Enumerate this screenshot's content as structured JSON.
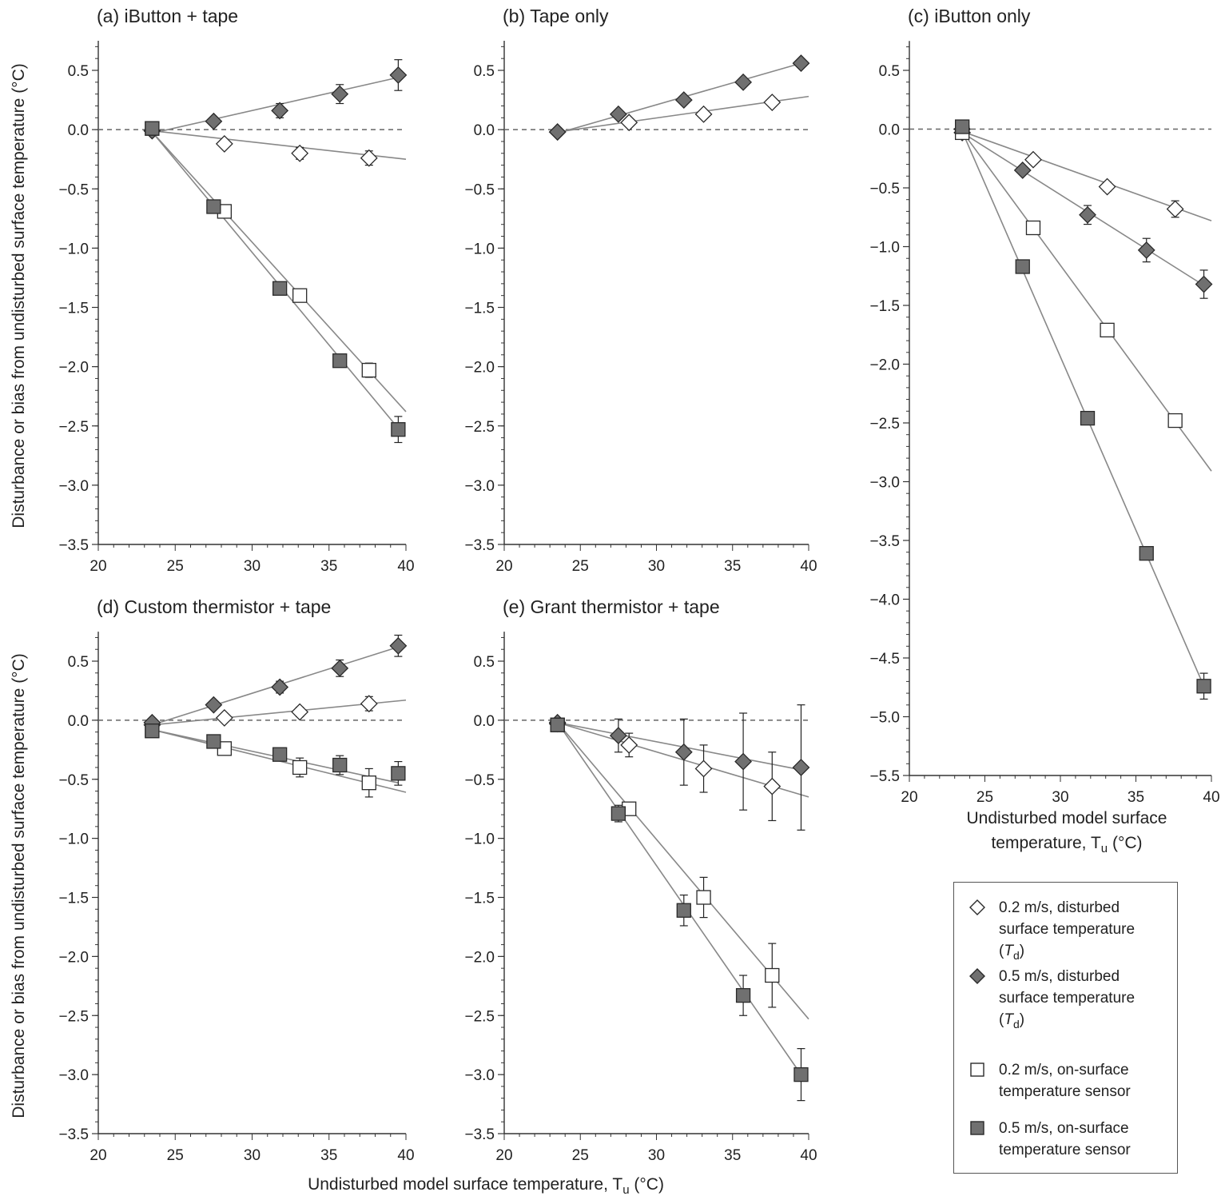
{
  "figure": {
    "ylabel_text": "Disturbance or bias from undisturbed surface temperature (°C)",
    "xlabel_main": "Undisturbed model surface temperature, T",
    "xlabel_sub": "u",
    "xlabel_unit": " (°C)",
    "xlabel_c_line1": "Undisturbed model surface",
    "xlabel_c_line2": "temperature, T",
    "xlabel_c_sub": "u",
    "xlabel_c_unit": " (°C)"
  },
  "colors": {
    "open": "#ffffff",
    "filled": "#707070",
    "stroke": "#2a2a2a",
    "line": "#888888",
    "axis": "#333333",
    "dash": "#666666"
  },
  "legend": {
    "items": [
      {
        "marker": "diamond-open",
        "line1": "0.2 m/s, disturbed",
        "line2": "surface temperature",
        "line3_pre": "(",
        "line3_var": "T",
        "line3_sub": "d",
        "line3_post": ")"
      },
      {
        "marker": "diamond-filled",
        "line1": "0.5 m/s, disturbed",
        "line2": "surface temperature",
        "line3_pre": "(",
        "line3_var": "T",
        "line3_sub": "d",
        "line3_post": ")"
      },
      {
        "marker": "square-open",
        "line1": "0.2 m/s, on-surface",
        "line2": "temperature sensor"
      },
      {
        "marker": "square-filled",
        "line1": "0.5 m/s, on-surface",
        "line2": "temperature sensor"
      }
    ]
  },
  "chart_data": [
    {
      "id": "a",
      "type": "scatter",
      "title": "(a) iButton + tape",
      "xlim": [
        20,
        40
      ],
      "ylim": [
        -3.5,
        0.75
      ],
      "xticks": [
        20,
        25,
        30,
        35,
        40
      ],
      "xtick_labels": [
        "20",
        "25",
        "30",
        "35",
        "40"
      ],
      "yticks": [
        0.5,
        0.0,
        -0.5,
        -1.0,
        -1.5,
        -2.0,
        -2.5,
        -3.0,
        -3.5
      ],
      "ytick_labels": [
        "0.5",
        "0.0",
        "−0.5",
        "−1.0",
        "−1.5",
        "−2.0",
        "−2.5",
        "−3.0",
        "−3.5"
      ],
      "series": [
        {
          "name": "0.2 m/s, disturbed surface temperature (Td)",
          "marker": "diamond-open",
          "x": [
            23.5,
            28.2,
            33.1,
            37.6
          ],
          "y": [
            -0.01,
            -0.12,
            -0.2,
            -0.24
          ],
          "err": [
            0,
            0.03,
            0.05,
            0.06
          ],
          "fit": [
            [
              23.5,
              -0.01
            ],
            [
              40,
              -0.25
            ]
          ]
        },
        {
          "name": "0.5 m/s, disturbed surface temperature (Td)",
          "marker": "diamond-filled",
          "x": [
            23.5,
            27.5,
            31.8,
            35.7,
            39.5
          ],
          "y": [
            -0.01,
            0.07,
            0.16,
            0.3,
            0.46
          ],
          "err": [
            0,
            0.03,
            0.06,
            0.08,
            0.13
          ],
          "fit": [
            [
              23.5,
              -0.03
            ],
            [
              39.5,
              0.44
            ]
          ]
        },
        {
          "name": "0.2 m/s, on-surface temperature sensor",
          "marker": "square-open",
          "x": [
            23.5,
            28.2,
            33.1,
            37.6
          ],
          "y": [
            0.01,
            -0.69,
            -1.4,
            -2.03
          ],
          "err": [
            0,
            0.04,
            0.05,
            0.06
          ],
          "fit": [
            [
              23.5,
              -0.02
            ],
            [
              40,
              -2.38
            ]
          ]
        },
        {
          "name": "0.5 m/s, on-surface temperature sensor",
          "marker": "square-filled",
          "x": [
            23.5,
            27.5,
            31.8,
            35.7,
            39.5
          ],
          "y": [
            0.01,
            -0.65,
            -1.34,
            -1.95,
            -2.53
          ],
          "err": [
            0,
            0.03,
            0.04,
            0.05,
            0.11
          ],
          "fit": [
            [
              23.5,
              -0.02
            ],
            [
              39.5,
              -2.52
            ]
          ]
        }
      ]
    },
    {
      "id": "b",
      "type": "scatter",
      "title": "(b) Tape only",
      "xlim": [
        20,
        40
      ],
      "ylim": [
        -3.5,
        0.75
      ],
      "xticks": [
        20,
        25,
        30,
        35,
        40
      ],
      "xtick_labels": [
        "20",
        "25",
        "30",
        "35",
        "40"
      ],
      "yticks": [
        0.5,
        0.0,
        -0.5,
        -1.0,
        -1.5,
        -2.0,
        -2.5,
        -3.0,
        -3.5
      ],
      "ytick_labels": [
        "0.5",
        "0.0",
        "−0.5",
        "−1.0",
        "−1.5",
        "−2.0",
        "−2.5",
        "−3.0",
        "−3.5"
      ],
      "series": [
        {
          "name": "0.2 m/s, disturbed surface temperature (Td)",
          "marker": "diamond-open",
          "x": [
            23.5,
            28.2,
            33.1,
            37.6
          ],
          "y": [
            -0.02,
            0.06,
            0.13,
            0.23
          ],
          "err": [
            0,
            0,
            0,
            0
          ],
          "fit": [
            [
              23.5,
              -0.02
            ],
            [
              40,
              0.28
            ]
          ]
        },
        {
          "name": "0.5 m/s, disturbed surface temperature (Td)",
          "marker": "diamond-filled",
          "x": [
            23.5,
            27.5,
            31.8,
            35.7,
            39.5
          ],
          "y": [
            -0.02,
            0.13,
            0.25,
            0.4,
            0.56
          ],
          "err": [
            0,
            0,
            0,
            0,
            0
          ],
          "fit": [
            [
              23.5,
              -0.03
            ],
            [
              39.5,
              0.56
            ]
          ]
        }
      ]
    },
    {
      "id": "c",
      "type": "scatter",
      "title": "(c) iButton only",
      "xlim": [
        20,
        40
      ],
      "ylim": [
        -5.5,
        0.75
      ],
      "xticks": [
        20,
        25,
        30,
        35,
        40
      ],
      "xtick_labels": [
        "20",
        "25",
        "30",
        "35",
        "40"
      ],
      "yticks": [
        0.5,
        0.0,
        -0.5,
        -1.0,
        -1.5,
        -2.0,
        -2.5,
        -3.0,
        -3.5,
        -4.0,
        -4.5,
        -5.0,
        -5.5
      ],
      "ytick_labels": [
        "0.5",
        "0.0",
        "−0.5",
        "−1.0",
        "−1.5",
        "−2.0",
        "−2.5",
        "−3.0",
        "−3.5",
        "−4.0",
        "−4.5",
        "−5.0",
        "−5.5"
      ],
      "series": [
        {
          "name": "0.2 m/s, disturbed surface temperature (Td)",
          "marker": "diamond-open",
          "x": [
            23.5,
            28.2,
            33.1,
            37.6
          ],
          "y": [
            -0.03,
            -0.26,
            -0.49,
            -0.68
          ],
          "err": [
            0,
            0,
            0.04,
            0.07
          ],
          "fit": [
            [
              23.5,
              -0.02
            ],
            [
              40,
              -0.78
            ]
          ]
        },
        {
          "name": "0.5 m/s, disturbed surface temperature (Td)",
          "marker": "diamond-filled",
          "x": [
            23.5,
            27.5,
            31.8,
            35.7,
            39.5
          ],
          "y": [
            0.0,
            -0.35,
            -0.73,
            -1.03,
            -1.32
          ],
          "err": [
            0,
            0.03,
            0.08,
            0.1,
            0.12
          ],
          "fit": [
            [
              23.5,
              -0.03
            ],
            [
              39.5,
              -1.33
            ]
          ]
        },
        {
          "name": "0.2 m/s, on-surface temperature sensor",
          "marker": "square-open",
          "x": [
            23.5,
            28.2,
            33.1,
            37.6
          ],
          "y": [
            -0.03,
            -0.84,
            -1.71,
            -2.48
          ],
          "err": [
            0,
            0,
            0,
            0
          ],
          "fit": [
            [
              23.5,
              -0.02
            ],
            [
              40,
              -2.91
            ]
          ]
        },
        {
          "name": "0.5 m/s, on-surface temperature sensor",
          "marker": "square-filled",
          "x": [
            23.5,
            27.5,
            31.8,
            35.7,
            39.5
          ],
          "y": [
            0.02,
            -1.17,
            -2.46,
            -3.61,
            -4.74
          ],
          "err": [
            0,
            0,
            0,
            0.04,
            0.11
          ],
          "fit": [
            [
              23.5,
              -0.02
            ],
            [
              39.5,
              -4.74
            ]
          ]
        }
      ]
    },
    {
      "id": "d",
      "type": "scatter",
      "title": "(d) Custom thermistor + tape",
      "xlim": [
        20,
        40
      ],
      "ylim": [
        -3.5,
        0.75
      ],
      "xticks": [
        20,
        25,
        30,
        35,
        40
      ],
      "xtick_labels": [
        "20",
        "25",
        "30",
        "35",
        "40"
      ],
      "yticks": [
        0.5,
        0.0,
        -0.5,
        -1.0,
        -1.5,
        -2.0,
        -2.5,
        -3.0,
        -3.5
      ],
      "ytick_labels": [
        "0.5",
        "0.0",
        "−0.5",
        "−1.0",
        "−1.5",
        "−2.0",
        "−2.5",
        "−3.0",
        "−3.5"
      ],
      "series": [
        {
          "name": "0.2 m/s, disturbed surface temperature (Td)",
          "marker": "diamond-open",
          "x": [
            23.5,
            28.2,
            33.1,
            37.6
          ],
          "y": [
            -0.04,
            0.02,
            0.07,
            0.14
          ],
          "err": [
            0,
            0.03,
            0.04,
            0.06
          ],
          "fit": [
            [
              23.5,
              -0.04
            ],
            [
              40,
              0.17
            ]
          ]
        },
        {
          "name": "0.5 m/s, disturbed surface temperature (Td)",
          "marker": "diamond-filled",
          "x": [
            23.5,
            27.5,
            31.8,
            35.7,
            39.5
          ],
          "y": [
            -0.02,
            0.13,
            0.28,
            0.44,
            0.63
          ],
          "err": [
            0,
            0.03,
            0.05,
            0.07,
            0.09
          ],
          "fit": [
            [
              23.5,
              -0.04
            ],
            [
              39.5,
              0.62
            ]
          ]
        },
        {
          "name": "0.2 m/s, on-surface temperature sensor",
          "marker": "square-open",
          "x": [
            23.5,
            28.2,
            33.1,
            37.6
          ],
          "y": [
            -0.09,
            -0.24,
            -0.4,
            -0.53
          ],
          "err": [
            0,
            0.03,
            0.08,
            0.12
          ],
          "fit": [
            [
              23.5,
              -0.08
            ],
            [
              40,
              -0.61
            ]
          ]
        },
        {
          "name": "0.5 m/s, on-surface temperature sensor",
          "marker": "square-filled",
          "x": [
            23.5,
            27.5,
            31.8,
            35.7,
            39.5
          ],
          "y": [
            -0.09,
            -0.18,
            -0.29,
            -0.38,
            -0.45
          ],
          "err": [
            0,
            0.03,
            0.04,
            0.08,
            0.1
          ],
          "fit": [
            [
              23.5,
              -0.08
            ],
            [
              39.5,
              -0.53
            ]
          ]
        }
      ]
    },
    {
      "id": "e",
      "type": "scatter",
      "title": "(e) Grant thermistor + tape",
      "xlim": [
        20,
        40
      ],
      "ylim": [
        -3.5,
        0.75
      ],
      "xticks": [
        20,
        25,
        30,
        35,
        40
      ],
      "xtick_labels": [
        "20",
        "25",
        "30",
        "35",
        "40"
      ],
      "yticks": [
        0.5,
        0.0,
        -0.5,
        -1.0,
        -1.5,
        -2.0,
        -2.5,
        -3.0,
        -3.5
      ],
      "ytick_labels": [
        "0.5",
        "0.0",
        "−0.5",
        "−1.0",
        "−1.5",
        "−2.0",
        "−2.5",
        "−3.0",
        "−3.5"
      ],
      "series": [
        {
          "name": "0.2 m/s, disturbed surface temperature (Td)",
          "marker": "diamond-open",
          "x": [
            23.5,
            28.2,
            33.1,
            37.6
          ],
          "y": [
            -0.03,
            -0.21,
            -0.41,
            -0.56
          ],
          "err": [
            0,
            0.1,
            0.2,
            0.29
          ],
          "fit": [
            [
              23.5,
              -0.02
            ],
            [
              40,
              -0.65
            ]
          ]
        },
        {
          "name": "0.5 m/s, disturbed surface temperature (Td)",
          "marker": "diamond-filled",
          "x": [
            23.5,
            27.5,
            31.8,
            35.7,
            39.5
          ],
          "y": [
            -0.02,
            -0.13,
            -0.27,
            -0.35,
            -0.4
          ],
          "err": [
            0,
            0.14,
            0.28,
            0.41,
            0.53
          ],
          "fit": [
            [
              23.5,
              -0.02
            ],
            [
              39.5,
              -0.42
            ]
          ]
        },
        {
          "name": "0.2 m/s, on-surface temperature sensor",
          "marker": "square-open",
          "x": [
            23.5,
            28.2,
            33.1,
            37.6
          ],
          "y": [
            -0.04,
            -0.75,
            -1.5,
            -2.16
          ],
          "err": [
            0,
            0.05,
            0.17,
            0.27
          ],
          "fit": [
            [
              23.5,
              -0.02
            ],
            [
              40,
              -2.53
            ]
          ]
        },
        {
          "name": "0.5 m/s, on-surface temperature sensor",
          "marker": "square-filled",
          "x": [
            23.5,
            27.5,
            31.8,
            35.7,
            39.5
          ],
          "y": [
            -0.04,
            -0.79,
            -1.61,
            -2.33,
            -3.0
          ],
          "err": [
            0,
            0.07,
            0.13,
            0.17,
            0.22
          ],
          "fit": [
            [
              23.5,
              -0.02
            ],
            [
              39.5,
              -3.0
            ]
          ]
        }
      ]
    }
  ]
}
